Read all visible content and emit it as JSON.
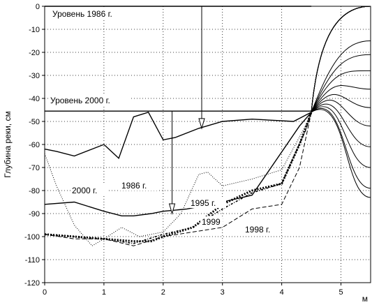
{
  "chart_data": {
    "type": "line",
    "title": "",
    "xlabel": "м",
    "ylabel": "Глубина реки, см",
    "xlim": [
      0,
      5.5
    ],
    "ylim": [
      -120,
      0
    ],
    "x_ticks": [
      "0",
      "1",
      "2",
      "3",
      "4",
      "5"
    ],
    "y_ticks": [
      "0",
      "-10",
      "-20",
      "-30",
      "-40",
      "-50",
      "-60",
      "-70",
      "-80",
      "-90",
      "-100",
      "-110",
      "-120"
    ],
    "grid": true,
    "colors": {
      "line": "#000000",
      "background": "#ffffff"
    },
    "level_lines": [
      {
        "label": "Уровень 1986 г.",
        "y": 0
      },
      {
        "label": "Уровень 2000 г.",
        "y": -45.5
      }
    ],
    "arrows": [
      {
        "x": 2.65,
        "from": 0,
        "to": -53
      },
      {
        "x": 2.15,
        "from": -45.5,
        "to": -90
      }
    ],
    "series": [
      {
        "name": "2000 г.",
        "style": "solid",
        "x": [
          0,
          0.5,
          1,
          1.3,
          1.5,
          1.8,
          2.0,
          2.4,
          3.0,
          3.5,
          4.3,
          4.5
        ],
        "y": [
          -86,
          -85,
          -89,
          -91,
          -91,
          -90,
          -89,
          -88,
          -85,
          -82,
          -52,
          -46
        ]
      },
      {
        "name": "",
        "style": "solid",
        "x": [
          0,
          0.2,
          0.5,
          0.8,
          1.0,
          1.25,
          1.5,
          1.75,
          2.0,
          2.2,
          2.6,
          3.0,
          3.5,
          4.2,
          4.5
        ],
        "y": [
          -62,
          -63,
          -65,
          -62,
          -60,
          -66,
          -48,
          -46,
          -58,
          -57,
          -53,
          -50,
          -49,
          -50,
          -46
        ]
      },
      {
        "name": "1986 г.",
        "style": "dotted",
        "x": [
          0,
          0.2,
          0.5,
          0.8,
          1.0,
          1.3,
          1.6,
          2.0,
          2.3,
          2.6,
          2.75,
          3.0,
          3.5,
          4.0,
          4.4,
          4.5
        ],
        "y": [
          -64,
          -78,
          -95,
          -104,
          -101,
          -96,
          -100,
          -98,
          -90,
          -73,
          -72,
          -78,
          -75,
          -71,
          -52,
          -46
        ]
      },
      {
        "name": "1995 г.",
        "style": "heavy-dotted",
        "x": [
          0,
          0.5,
          1.0,
          1.5,
          1.8,
          2.0,
          2.5,
          3.0,
          3.5,
          4.0,
          4.3,
          4.5
        ],
        "y": [
          -99,
          -100,
          -101,
          -102,
          -102,
          -100,
          -96,
          -86,
          -80,
          -77,
          -60,
          -46
        ]
      },
      {
        "name": "1999",
        "style": "dash-dot",
        "x": [
          0,
          0.5,
          1.0,
          1.5,
          2.0,
          2.5,
          3.0,
          3.5,
          4.0,
          4.4,
          4.5
        ],
        "y": [
          -99,
          -100,
          -101,
          -103,
          -99,
          -96,
          -88,
          -81,
          -77,
          -54,
          -46
        ]
      },
      {
        "name": "1998 г.",
        "style": "dashed",
        "x": [
          0,
          0.5,
          1.0,
          1.5,
          2.0,
          2.5,
          3.0,
          3.5,
          4.0,
          4.3,
          4.5
        ],
        "y": [
          -99,
          -101,
          -101,
          -104,
          -100,
          -98,
          -96,
          -88,
          -86,
          -70,
          -46
        ]
      }
    ],
    "bank_contours": {
      "crest_x": 5.5,
      "crest_y": 0,
      "start_x": 4.5,
      "start_y": -46,
      "levels_y": [
        -15,
        -21,
        -28,
        -36,
        -44,
        -52,
        -61,
        -70,
        -79,
        -83
      ]
    }
  }
}
